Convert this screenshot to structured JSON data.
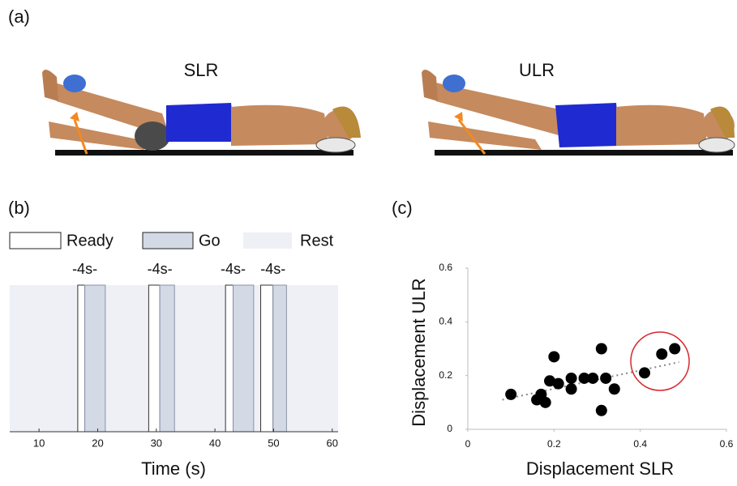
{
  "illustration": {
    "panel_label": "(a)",
    "left_title": "SLR",
    "right_title": "ULR"
  },
  "chart_data": [
    {
      "type": "timeline",
      "panel_label": "(b)",
      "x_label": "Time (s)",
      "xlim": [
        5,
        61
      ],
      "xticks": [
        10,
        20,
        30,
        40,
        50,
        60
      ],
      "series": [
        {
          "name": "Ready",
          "color": "#ffffff",
          "starts": [
            16.6,
            28.7,
            41.8,
            47.8
          ],
          "ends": [
            17.8,
            30.6,
            43.1,
            49.9
          ]
        },
        {
          "name": "Go",
          "color": "#d3d9e5",
          "starts": [
            17.8,
            30.6,
            43.1,
            49.9
          ],
          "ends": [
            21.3,
            33.1,
            46.6,
            52.2
          ]
        },
        {
          "name": "Rest",
          "color": "#eef0f5"
        }
      ],
      "interval_labels": [
        "-4s-",
        "-4s-",
        "-4s-",
        "-4s-"
      ]
    },
    {
      "type": "scatter",
      "panel_label": "(c)",
      "x_label": "Displacement SLR",
      "y_label": "Displacement ULR",
      "xlim": [
        0,
        0.6
      ],
      "ylim": [
        0,
        0.6
      ],
      "xticks": [
        0,
        0.2,
        0.4,
        0.6
      ],
      "yticks": [
        0,
        0.2,
        0.4,
        0.6
      ],
      "color": "#000000",
      "x": [
        0.1,
        0.16,
        0.17,
        0.18,
        0.19,
        0.2,
        0.21,
        0.24,
        0.24,
        0.27,
        0.29,
        0.31,
        0.31,
        0.32,
        0.34,
        0.41,
        0.45,
        0.48
      ],
      "y": [
        0.13,
        0.11,
        0.13,
        0.1,
        0.18,
        0.27,
        0.17,
        0.19,
        0.15,
        0.19,
        0.19,
        0.3,
        0.07,
        0.19,
        0.15,
        0.21,
        0.28,
        0.3
      ],
      "trendline": {
        "x": [
          0.08,
          0.49
        ],
        "y": [
          0.11,
          0.25
        ]
      }
    }
  ]
}
